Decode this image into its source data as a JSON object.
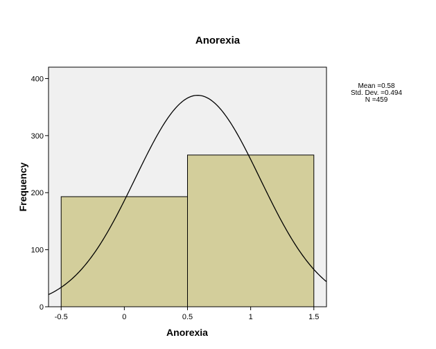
{
  "chart_data": {
    "type": "bar",
    "title": "Anorexia",
    "xlabel": "Anorexia",
    "ylabel": "Frequency",
    "bins": [
      {
        "x_start": -0.5,
        "x_end": 0.5,
        "value": 193
      },
      {
        "x_start": 0.5,
        "x_end": 1.5,
        "value": 266
      }
    ],
    "xlim": [
      -0.6,
      1.6
    ],
    "ylim": [
      0,
      420
    ],
    "x_ticks": [
      "-0.5",
      "0",
      "0.5",
      "1",
      "1.5"
    ],
    "x_tick_values": [
      -0.5,
      0,
      0.5,
      1,
      1.5
    ],
    "y_ticks": [
      "0",
      "100",
      "200",
      "300",
      "400"
    ],
    "y_tick_values": [
      0,
      100,
      200,
      300,
      400
    ],
    "normal_curve": {
      "mean": 0.58,
      "std_dev": 0.494,
      "n": 459,
      "bin_width": 1
    },
    "stats": {
      "mean": "Mean =0.58",
      "std_dev": "Std. Dev. =0.494",
      "n": "N =459"
    },
    "grid": false,
    "colors": {
      "plot_background": "#f0f0f0",
      "bar_fill": "#d3ce9b",
      "bar_stroke": "#000000",
      "curve": "#000000"
    }
  }
}
